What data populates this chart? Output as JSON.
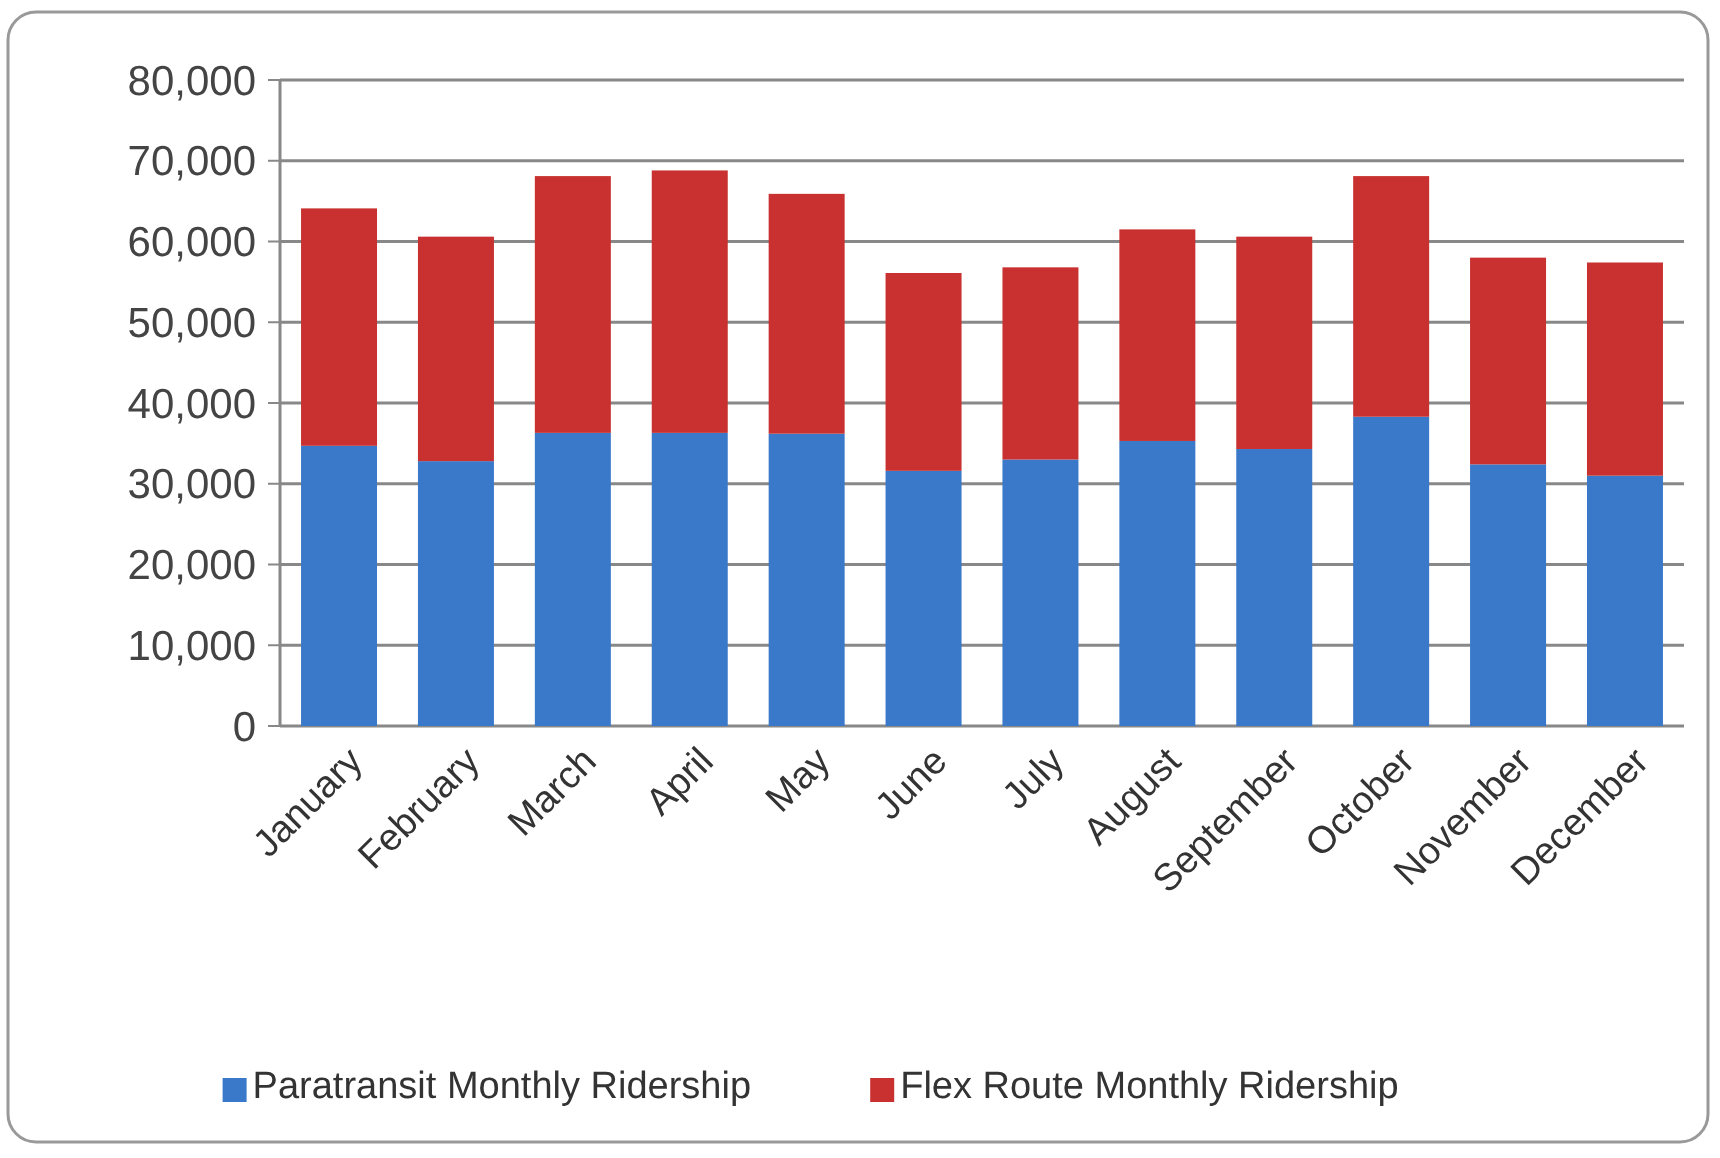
{
  "chart_data": {
    "type": "bar",
    "stacked": true,
    "categories": [
      "January",
      "February",
      "March",
      "April",
      "May",
      "June",
      "July",
      "August",
      "September",
      "October",
      "November",
      "December"
    ],
    "series": [
      {
        "name": "Paratransit Monthly Ridership",
        "color": "#3a78c9",
        "values": [
          34700,
          32800,
          36300,
          36300,
          36200,
          31600,
          33000,
          35300,
          34300,
          38300,
          32400,
          31000
        ]
      },
      {
        "name": "Flex Route Monthly Ridership",
        "color": "#c8312f",
        "values": [
          29400,
          27800,
          31800,
          32500,
          29700,
          24500,
          23800,
          26200,
          26300,
          29800,
          25600,
          26400
        ]
      }
    ],
    "ylim": [
      0,
      80000
    ],
    "yticks": [
      {
        "value": 0,
        "label": "0"
      },
      {
        "value": 10000,
        "label": "10,000"
      },
      {
        "value": 20000,
        "label": "20,000"
      },
      {
        "value": 30000,
        "label": "30,000"
      },
      {
        "value": 40000,
        "label": "40,000"
      },
      {
        "value": 50000,
        "label": "50,000"
      },
      {
        "value": 60000,
        "label": "60,000"
      },
      {
        "value": 70000,
        "label": "70,000"
      },
      {
        "value": 80000,
        "label": "80,000"
      }
    ],
    "grid": "y",
    "legend": "bottom"
  }
}
